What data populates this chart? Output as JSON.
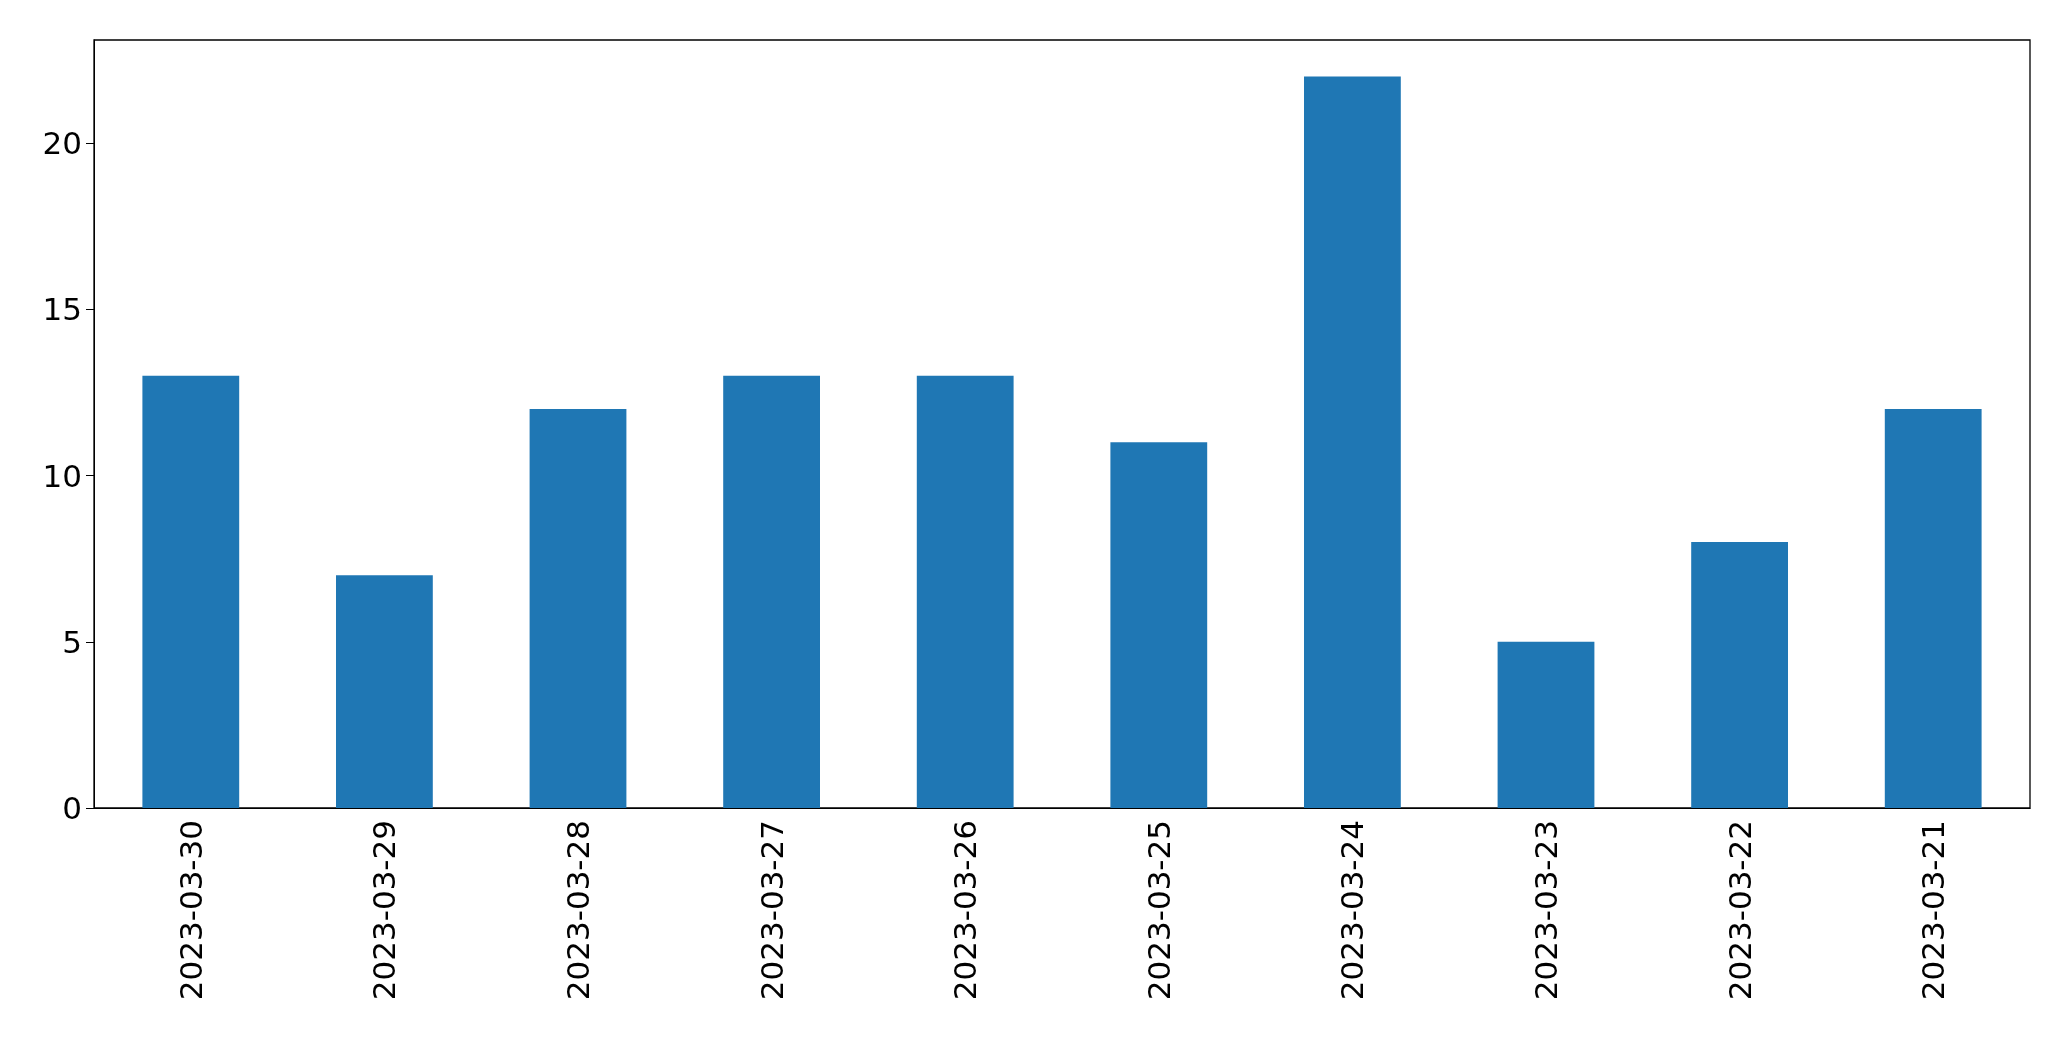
{
  "chart_data": {
    "type": "bar",
    "categories": [
      "2023-03-30",
      "2023-03-29",
      "2023-03-28",
      "2023-03-27",
      "2023-03-26",
      "2023-03-25",
      "2023-03-24",
      "2023-03-23",
      "2023-03-22",
      "2023-03-21"
    ],
    "values": [
      13,
      7,
      12,
      13,
      13,
      11,
      22,
      5,
      8,
      12
    ],
    "color": "#1f77b4",
    "ylim": [
      0,
      23.1
    ],
    "yticks": [
      0,
      5,
      10,
      15,
      20
    ],
    "grid": false
  }
}
